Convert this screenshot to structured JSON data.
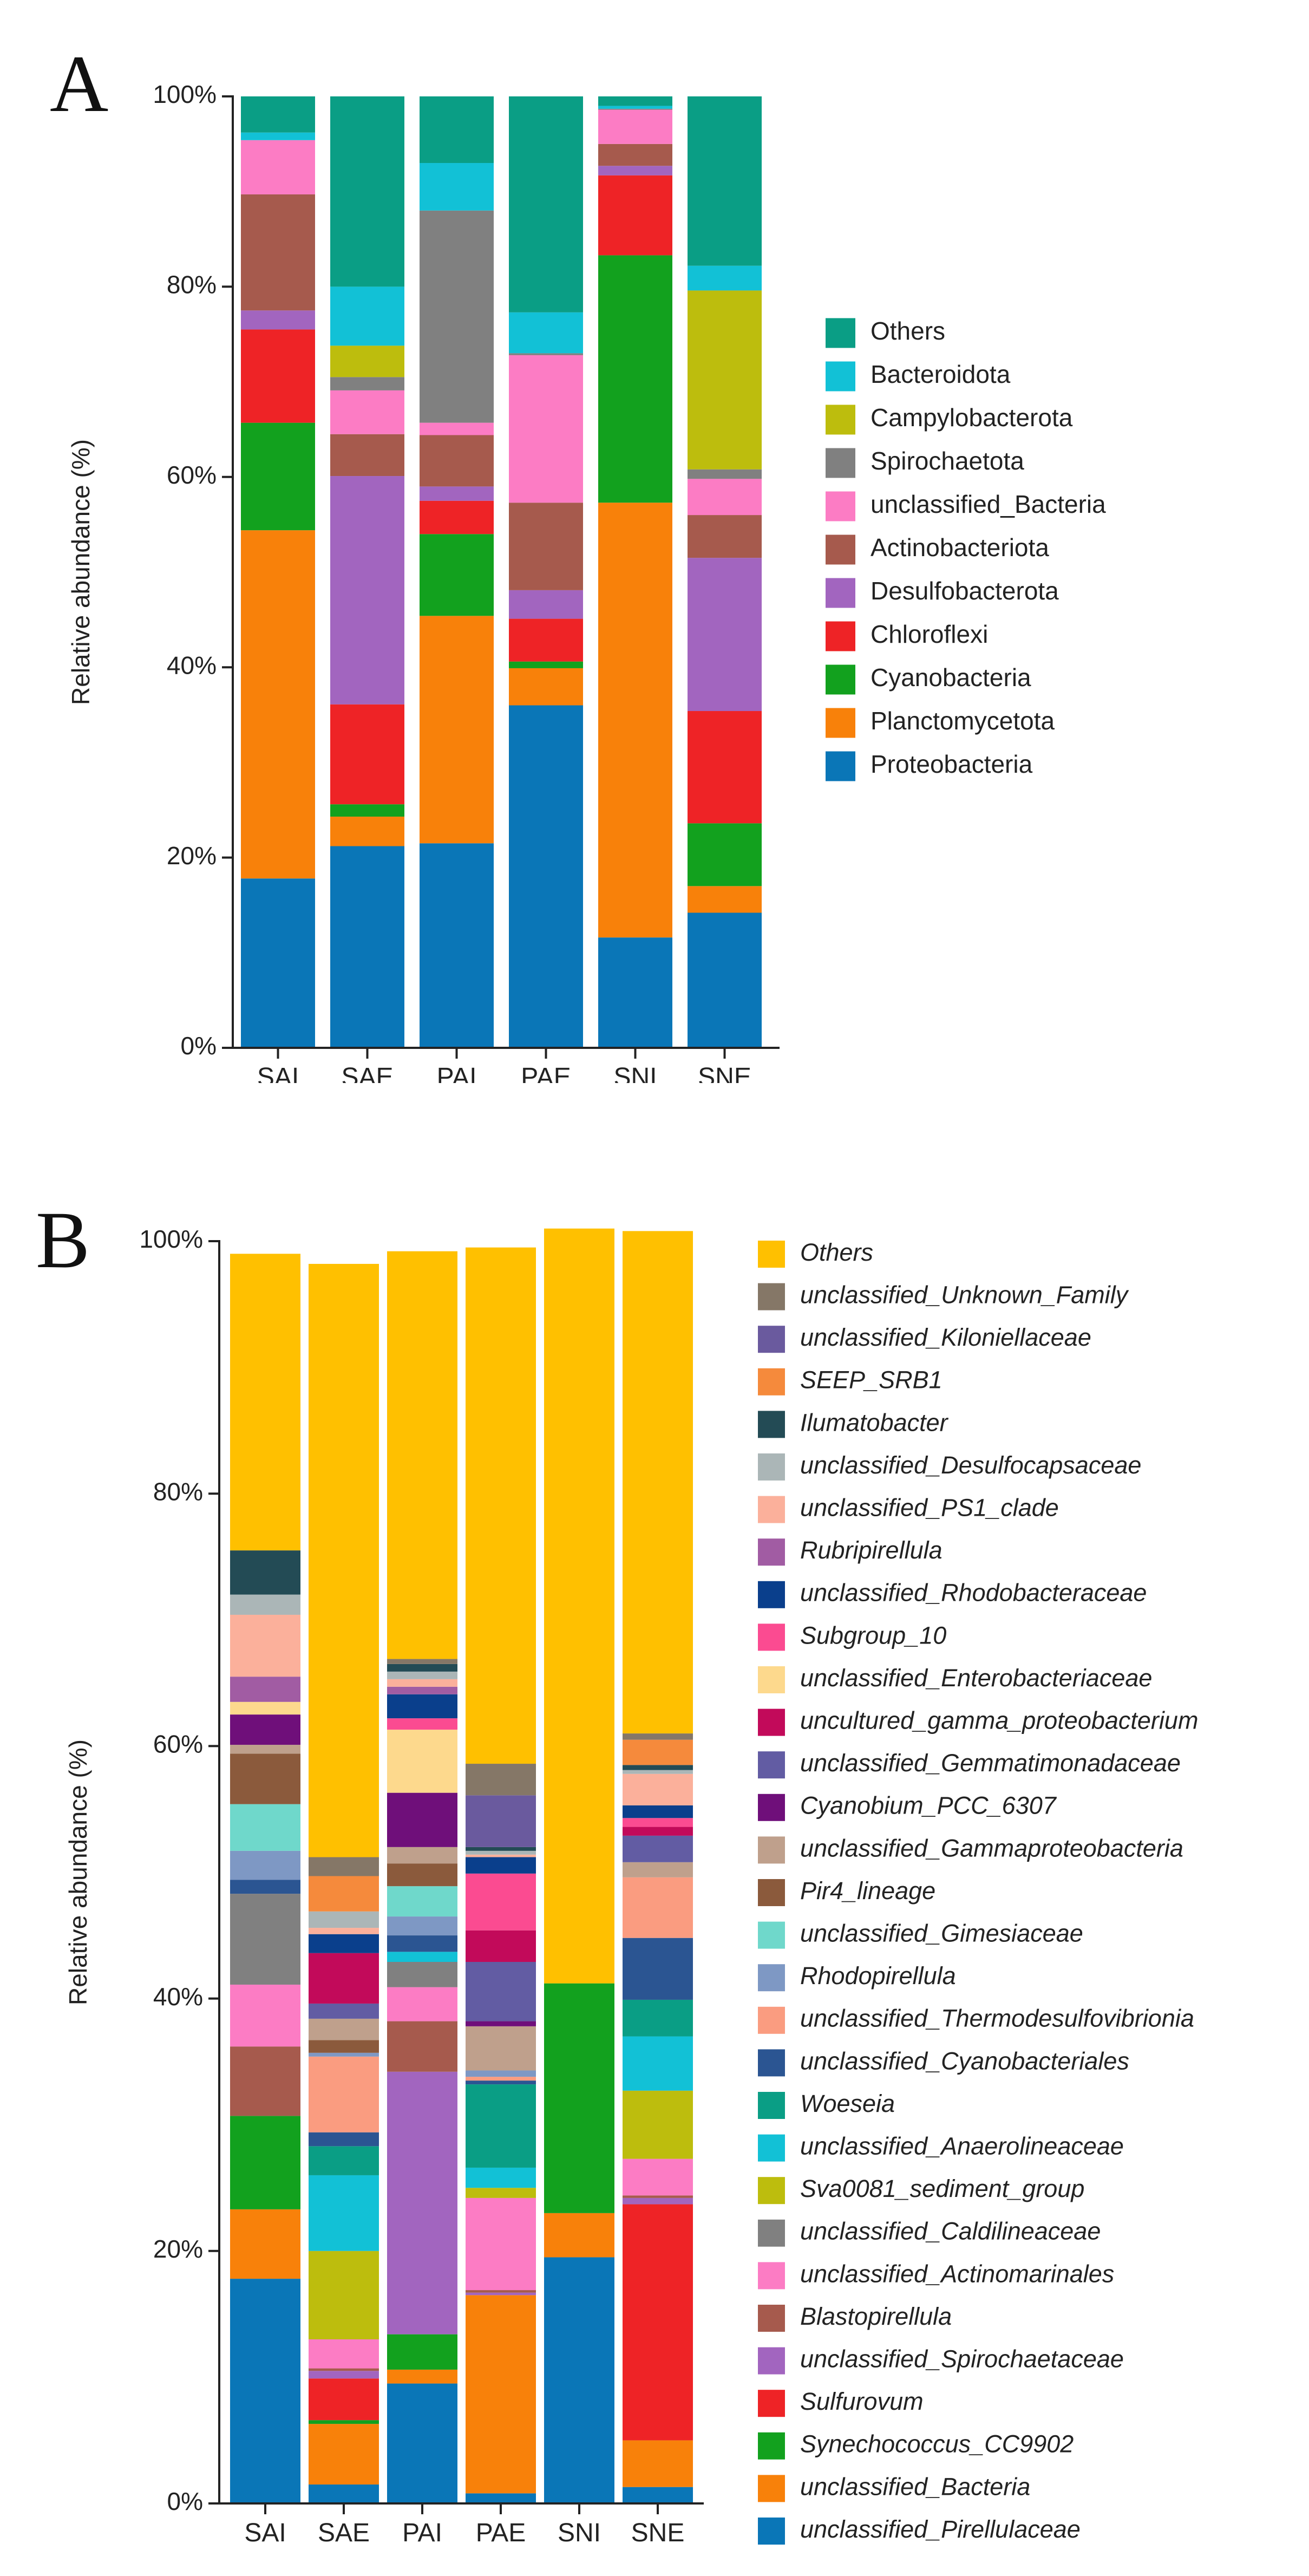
{
  "chart_data": [
    {
      "panel": "A",
      "type": "bar",
      "stacked": true,
      "ylabel": "Relative abundance (%)",
      "xlabel": "",
      "ylim": [
        0,
        100
      ],
      "yticks": [
        "0%",
        "20%",
        "40%",
        "60%",
        "80%",
        "100%"
      ],
      "categories": [
        "SAI",
        "SAE",
        "PAI",
        "PAE",
        "SNI",
        "SNE"
      ],
      "legend_italic": false,
      "series": [
        {
          "name": "Proteobacteria",
          "color": "#0A76B7",
          "values": [
            17.8,
            21.2,
            21.5,
            36.0,
            11.6,
            14.2
          ]
        },
        {
          "name": "Planctomycetota",
          "color": "#F8810A",
          "values": [
            36.6,
            3.1,
            23.9,
            3.9,
            45.7,
            2.8
          ]
        },
        {
          "name": "Cyanobacteria",
          "color": "#12A11E",
          "values": [
            11.3,
            1.3,
            8.6,
            0.7,
            26.0,
            6.6
          ]
        },
        {
          "name": "Chloroflexi",
          "color": "#EE2326",
          "values": [
            9.8,
            10.5,
            3.5,
            4.5,
            8.4,
            11.8
          ]
        },
        {
          "name": "Desulfobacterota",
          "color": "#A265BF",
          "values": [
            2.0,
            24.0,
            1.5,
            3.0,
            1.0,
            16.1
          ]
        },
        {
          "name": "Actinobacteriota",
          "color": "#A65A4D",
          "values": [
            12.2,
            4.4,
            5.4,
            9.2,
            2.3,
            4.5
          ]
        },
        {
          "name": "unclassified_Bacteria",
          "color": "#FC7CC4",
          "values": [
            5.7,
            4.6,
            1.3,
            15.5,
            3.6,
            3.8
          ]
        },
        {
          "name": "Spirochaetota",
          "color": "#808080",
          "values": [
            0.0,
            1.4,
            22.3,
            0.2,
            0.1,
            1.0
          ]
        },
        {
          "name": "Campylobacterota",
          "color": "#BDBD0D",
          "values": [
            0.0,
            3.3,
            0.0,
            0.0,
            0.0,
            18.8
          ]
        },
        {
          "name": "Bacteroidota",
          "color": "#12C1D6",
          "values": [
            0.8,
            6.2,
            5.0,
            4.3,
            0.3,
            2.6
          ]
        },
        {
          "name": "Others",
          "color": "#0A9E85",
          "values": [
            3.8,
            20.0,
            7.0,
            22.7,
            1.0,
            17.8
          ]
        }
      ]
    },
    {
      "panel": "B",
      "type": "bar",
      "stacked": true,
      "ylabel": "Relative abundance (%)",
      "xlabel": "",
      "ylim": [
        0,
        100
      ],
      "yticks": [
        "0%",
        "20%",
        "40%",
        "60%",
        "80%",
        "100%"
      ],
      "categories": [
        "SAI",
        "SAE",
        "PAI",
        "PAE",
        "SNI",
        "SNE"
      ],
      "legend_italic": true,
      "series": [
        {
          "name": "unclassified_Pirellulaceae",
          "color": "#0A76B7",
          "values": [
            17.8,
            1.5,
            9.5,
            0.8,
            19.5,
            1.3
          ]
        },
        {
          "name": "unclassified_Bacteria",
          "color": "#F8810A",
          "values": [
            5.5,
            4.8,
            1.1,
            15.7,
            3.5,
            3.7
          ]
        },
        {
          "name": "Synechococcus_CC9902",
          "color": "#12A11E",
          "values": [
            7.4,
            0.3,
            2.8,
            0.0,
            18.2,
            0.0
          ]
        },
        {
          "name": "Sulfurovum",
          "color": "#EE2326",
          "values": [
            0.0,
            3.3,
            0.0,
            0.0,
            0.0,
            18.7
          ]
        },
        {
          "name": "unclassified_Spirochaetaceae",
          "color": "#A265BF",
          "values": [
            0.0,
            0.6,
            20.8,
            0.2,
            0.0,
            0.5
          ]
        },
        {
          "name": "Blastopirellula",
          "color": "#A65A4D",
          "values": [
            5.5,
            0.2,
            4.0,
            0.2,
            0.0,
            0.2
          ]
        },
        {
          "name": "unclassified_Actinomarinales",
          "color": "#FC7CC4",
          "values": [
            4.9,
            2.3,
            2.7,
            7.3,
            0.0,
            2.9
          ]
        },
        {
          "name": "unclassified_Caldilineaceae",
          "color": "#808080",
          "values": [
            7.2,
            0.0,
            2.0,
            0.0,
            0.0,
            0.0
          ]
        },
        {
          "name": "Sva0081_sediment_group",
          "color": "#BDBD0D",
          "values": [
            0.0,
            7.0,
            0.0,
            0.8,
            0.0,
            5.4
          ]
        },
        {
          "name": "unclassified_Anaerolineaceae",
          "color": "#12C1D6",
          "values": [
            0.0,
            6.0,
            0.8,
            1.6,
            0.0,
            4.3
          ]
        },
        {
          "name": "Woeseia",
          "color": "#0A9E85",
          "values": [
            0.0,
            2.3,
            0.0,
            6.6,
            0.0,
            2.9
          ]
        },
        {
          "name": "unclassified_Cyanobacteriales",
          "color": "#2B5592",
          "values": [
            1.1,
            1.1,
            1.3,
            0.3,
            0.0,
            4.9
          ]
        },
        {
          "name": "unclassified_Thermodesulfovibrionia",
          "color": "#FA9C80",
          "values": [
            0.0,
            6.0,
            0.0,
            0.3,
            0.0,
            4.8
          ]
        },
        {
          "name": "Rhodopirellula",
          "color": "#7E98C4",
          "values": [
            2.3,
            0.3,
            1.5,
            0.5,
            0.0,
            0.0
          ]
        },
        {
          "name": "unclassified_Gimesiaceae",
          "color": "#6FD8CB",
          "values": [
            3.7,
            0.0,
            2.4,
            0.0,
            0.0,
            0.0
          ]
        },
        {
          "name": "Pir4_lineage",
          "color": "#8B5A3C",
          "values": [
            4.0,
            1.0,
            1.8,
            0.0,
            0.0,
            0.0
          ]
        },
        {
          "name": "unclassified_Gammaproteobacteria",
          "color": "#BFA08C",
          "values": [
            0.7,
            1.7,
            1.3,
            3.5,
            0.0,
            1.2
          ]
        },
        {
          "name": "Cyanobium_PCC_6307",
          "color": "#6F0F7A",
          "values": [
            2.4,
            0.0,
            4.3,
            0.4,
            0.0,
            0.0
          ]
        },
        {
          "name": "unclassified_Gemmatimonadaceae",
          "color": "#625CA3",
          "values": [
            0.0,
            1.2,
            0.0,
            4.7,
            0.0,
            2.1
          ]
        },
        {
          "name": "uncultured_gamma_proteobacterium",
          "color": "#C20A5A",
          "values": [
            0.0,
            4.0,
            0.0,
            2.5,
            0.0,
            0.7
          ]
        },
        {
          "name": "unclassified_Enterobacteriaceae",
          "color": "#FDD98D",
          "values": [
            1.0,
            0.0,
            5.0,
            0.0,
            0.0,
            0.0
          ]
        },
        {
          "name": "Subgroup_10",
          "color": "#FB4B91",
          "values": [
            0.0,
            0.0,
            0.9,
            4.5,
            0.0,
            0.7
          ]
        },
        {
          "name": "unclassified_Rhodobacteraceae",
          "color": "#0A3F8C",
          "values": [
            0.0,
            1.5,
            1.9,
            1.3,
            0.0,
            1.0
          ]
        },
        {
          "name": "Rubripirellula",
          "color": "#A15CA3",
          "values": [
            2.0,
            0.0,
            0.6,
            0.0,
            0.0,
            0.0
          ]
        },
        {
          "name": "unclassified_PS1_clade",
          "color": "#FBB09B",
          "values": [
            4.9,
            0.5,
            0.6,
            0.2,
            0.0,
            2.5
          ]
        },
        {
          "name": "unclassified_Desulfocapsaceae",
          "color": "#ABB6B7",
          "values": [
            1.6,
            1.3,
            0.6,
            0.3,
            0.0,
            0.3
          ]
        },
        {
          "name": "Ilumatobacter",
          "color": "#234B55",
          "values": [
            3.5,
            0.0,
            0.6,
            0.3,
            0.0,
            0.4
          ]
        },
        {
          "name": "SEEP_SRB1",
          "color": "#F58A3C",
          "values": [
            0.0,
            2.8,
            0.0,
            0.0,
            0.0,
            2.0
          ]
        },
        {
          "name": "unclassified_Kiloniellaceae",
          "color": "#6A5A9E",
          "values": [
            0.0,
            0.0,
            0.0,
            4.1,
            0.0,
            0.0
          ]
        },
        {
          "name": "unclassified_Unknown_Family",
          "color": "#857767",
          "values": [
            0.0,
            1.5,
            0.4,
            2.5,
            0.0,
            0.5
          ]
        },
        {
          "name": "Others",
          "color": "#FFC000",
          "values": [
            23.5,
            47.0,
            32.3,
            40.9,
            59.8,
            39.8
          ]
        }
      ]
    }
  ]
}
